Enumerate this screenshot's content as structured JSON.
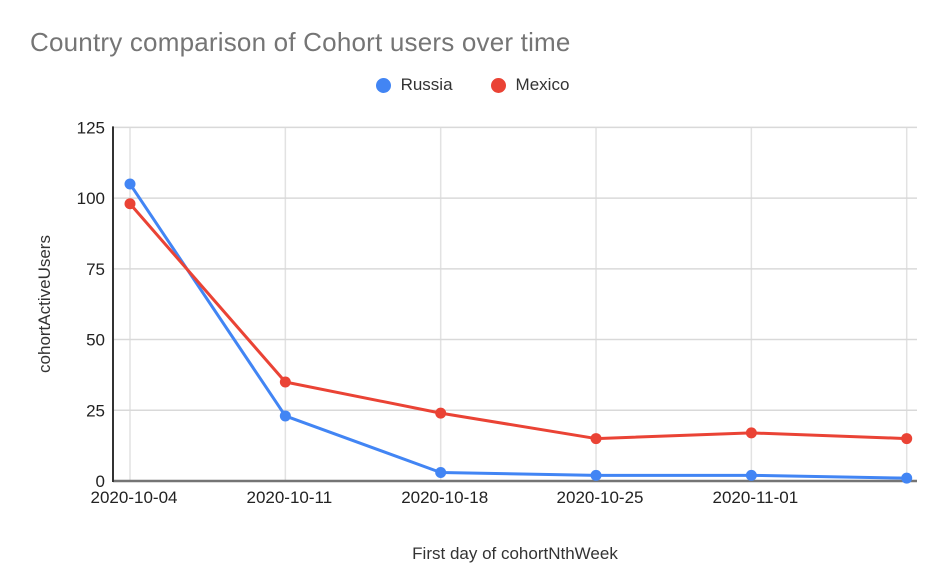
{
  "chart_data": {
    "type": "line",
    "title": "Country comparison of Cohort users over time",
    "xlabel": "First day of cohortNthWeek",
    "ylabel": "cohortActiveUsers",
    "categories": [
      "2020-10-04",
      "2020-10-11",
      "2020-10-18",
      "2020-10-25",
      "2020-11-01",
      ""
    ],
    "series": [
      {
        "name": "Russia",
        "color": "#4285F4",
        "values": [
          105,
          23,
          3,
          2,
          2,
          1
        ]
      },
      {
        "name": "Mexico",
        "color": "#EA4335",
        "values": [
          98,
          35,
          24,
          15,
          17,
          15
        ]
      }
    ],
    "ylim": [
      0,
      125
    ],
    "yticks": [
      0,
      25,
      50,
      75,
      100,
      125
    ],
    "grid": true,
    "legend_position": "top"
  },
  "colors": {
    "background": "#ffffff",
    "title_text": "#757575",
    "tick_label": "#222222",
    "axis_title_text": "#333333",
    "horizontal_gridline": "#d9d9d9",
    "vertical_gridline": "#e2e2e2",
    "y_axis_line": "#333333",
    "x_baseline": "#757575"
  }
}
